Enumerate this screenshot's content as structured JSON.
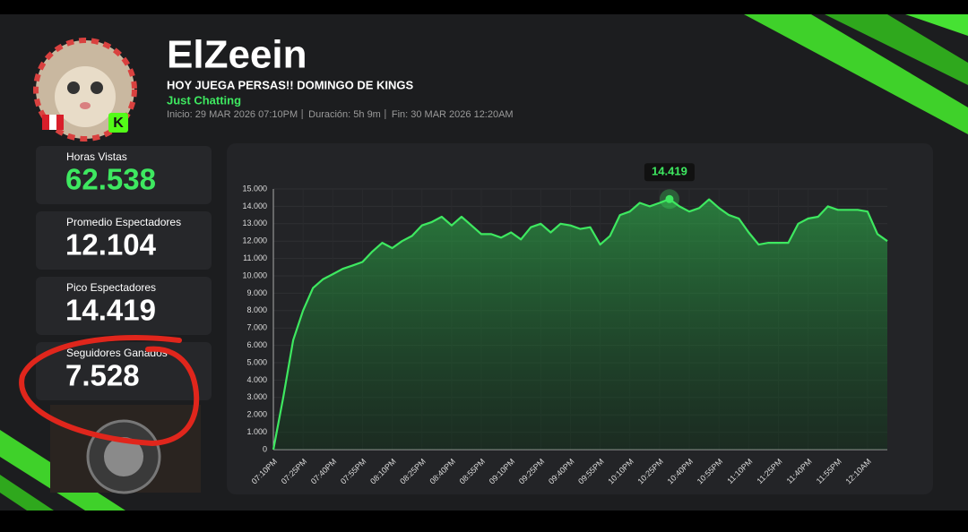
{
  "header": {
    "name": "ElZeein",
    "stream_title": "HOY JUEGA PERSAS!! DOMINGO DE KINGS",
    "category": "Just Chatting",
    "meta": [
      "Inicio: 29 MAR 2026 07:10PM",
      "Duración: 5h 9m",
      "Fin: 30 MAR 2026 12:20AM"
    ]
  },
  "stats": [
    {
      "label": "Horas Vistas",
      "value": "62.538"
    },
    {
      "label": "Promedio Espectadores",
      "value": "12.104"
    },
    {
      "label": "Pico Espectadores",
      "value": "14.419"
    },
    {
      "label": "Seguidores Ganados",
      "value": "7.528"
    }
  ],
  "chart_data": {
    "type": "line",
    "color": "#3ee860",
    "grid": true,
    "categories": [
      "07:10PM",
      null,
      null,
      "07:25PM",
      null,
      null,
      "07:40PM",
      null,
      null,
      "07:55PM",
      null,
      null,
      "08:10PM",
      null,
      null,
      "08:25PM",
      null,
      null,
      "08:40PM",
      null,
      null,
      "08:55PM",
      null,
      null,
      "09:10PM",
      null,
      null,
      "09:25PM",
      null,
      null,
      "09:40PM",
      null,
      null,
      "09:55PM",
      null,
      null,
      "10:10PM",
      null,
      null,
      "10:25PM",
      null,
      null,
      "10:40PM",
      null,
      null,
      "10:55PM",
      null,
      null,
      "11:10PM",
      null,
      null,
      "11:25PM",
      null,
      null,
      "11:40PM",
      null,
      null,
      "11:55PM",
      null,
      null,
      "12:10AM",
      null,
      null
    ],
    "values": [
      0,
      3000,
      6300,
      8000,
      9300,
      9800,
      10100,
      10400,
      10600,
      10800,
      11400,
      11900,
      11600,
      12000,
      12300,
      12900,
      13100,
      13400,
      12900,
      13400,
      12900,
      12400,
      12400,
      12200,
      12500,
      12100,
      12800,
      13000,
      12500,
      13000,
      12900,
      12700,
      12800,
      11800,
      12300,
      13500,
      13700,
      14200,
      14000,
      14200,
      14419,
      14000,
      13700,
      13900,
      14400,
      13900,
      13500,
      13300,
      12500,
      11800,
      11900,
      11900,
      11900,
      13000,
      13300,
      13400,
      14000,
      13800,
      13800,
      13800,
      13700,
      12400,
      12000
    ],
    "value_labels": [
      null,
      null,
      null,
      null,
      null,
      null,
      null,
      null,
      null,
      null,
      null,
      null,
      null,
      null,
      null,
      null,
      null,
      null,
      null,
      null,
      null,
      null,
      null,
      null,
      null,
      null,
      null,
      null,
      null,
      null,
      null,
      null,
      null,
      null,
      null,
      null,
      null,
      null,
      null,
      null,
      "14.419",
      null,
      null,
      null,
      null,
      null,
      null,
      null,
      null,
      null,
      null,
      null,
      null,
      null,
      null,
      null,
      null,
      null,
      null,
      null,
      null,
      null,
      null
    ],
    "ylim": [
      0,
      15000
    ],
    "yticks": [
      0,
      {
        "value": 1000,
        "label": "1.000"
      },
      {
        "value": 2000,
        "label": "2.000"
      },
      {
        "value": 3000,
        "label": "3.000"
      },
      {
        "value": 4000,
        "label": "4.000"
      },
      {
        "value": 5000,
        "label": "5.000"
      },
      {
        "value": 6000,
        "label": "6.000"
      },
      {
        "value": 7000,
        "label": "7.000"
      },
      {
        "value": 8000,
        "label": "8.000"
      },
      {
        "value": 9000,
        "label": "9.000"
      },
      {
        "value": 10000,
        "label": "10.000"
      },
      {
        "value": 11000,
        "label": "11.000"
      },
      {
        "value": 12000,
        "label": "12.000"
      },
      {
        "value": 13000,
        "label": "13.000"
      },
      {
        "value": 14000,
        "label": "14.000"
      },
      {
        "value": 15000,
        "label": "15.000"
      }
    ]
  }
}
